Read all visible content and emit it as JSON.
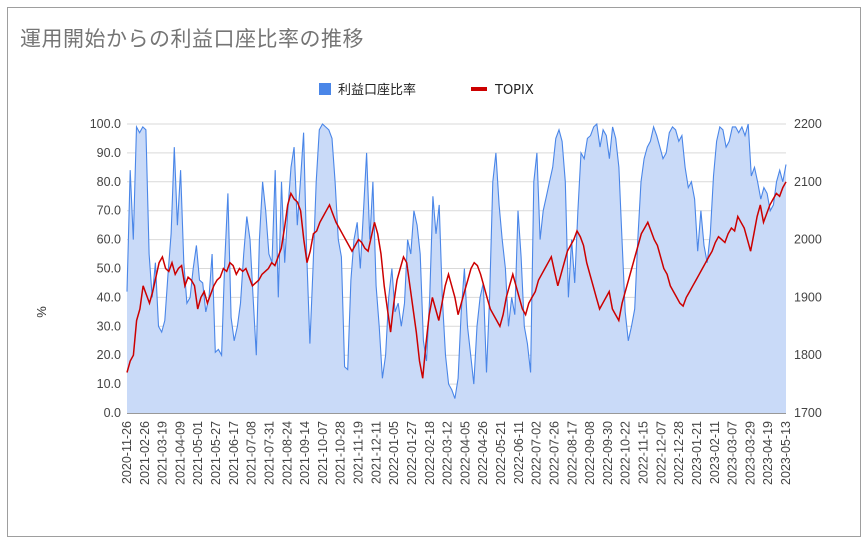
{
  "chart_data": {
    "type": "area-line-dual-axis",
    "title": "運用開始からの利益口座比率の推移",
    "ylabel_left": "%",
    "ylim_left": [
      0,
      100
    ],
    "left_ticks": [
      "100.0",
      "90.0",
      "80.0",
      "70.0",
      "60.0",
      "50.0",
      "40.0",
      "30.0",
      "20.0",
      "10.0",
      "0.0"
    ],
    "ylim_right": [
      1700,
      2200
    ],
    "right_ticks": [
      "2200",
      "2100",
      "2000",
      "1900",
      "1800",
      "1700"
    ],
    "legend": [
      "利益口座比率",
      "TOPIX"
    ],
    "legend_position": "top",
    "colors": {
      "ratio_line": "#4a86e8",
      "ratio_fill": "#c9daf8",
      "topix": "#cc0000",
      "legend_ratio": "#4a86e8",
      "legend_topix": "#cc0000"
    },
    "x_labels": [
      "2020-11-26",
      "2021-02-26",
      "2021-03-19",
      "2021-04-09",
      "2021-05-01",
      "2021-05-27",
      "2021-06-17",
      "2021-07-08",
      "2021-07-31",
      "2021-08-24",
      "2021-09-14",
      "2021-10-07",
      "2021-10-28",
      "2021-11-19",
      "2021-12-11",
      "2022-01-05",
      "2022-01-27",
      "2022-02-18",
      "2022-03-12",
      "2022-04-05",
      "2022-04-26",
      "2022-05-21",
      "2022-06-11",
      "2022-07-02",
      "2022-07-26",
      "2022-08-17",
      "2022-09-08",
      "2022-09-30",
      "2022-10-22",
      "2022-11-15",
      "2022-12-07",
      "2022-12-28",
      "2023-01-21",
      "2023-02-11",
      "2023-03-07",
      "2023-03-29",
      "2023-04-19",
      "2023-05-13"
    ],
    "series": [
      {
        "name": "利益口座比率",
        "axis": "left",
        "values": [
          42,
          84,
          60,
          99,
          97,
          99,
          98,
          55,
          40,
          52,
          30,
          28,
          32,
          48,
          62,
          92,
          65,
          84,
          52,
          38,
          40,
          50,
          58,
          46,
          45,
          35,
          40,
          55,
          21,
          22,
          20,
          52,
          76,
          33,
          25,
          30,
          38,
          55,
          68,
          60,
          40,
          20,
          60,
          80,
          70,
          55,
          52,
          84,
          40,
          80,
          52,
          70,
          85,
          92,
          65,
          80,
          97,
          55,
          24,
          50,
          80,
          98,
          100,
          99,
          98,
          95,
          80,
          60,
          54,
          16,
          15,
          46,
          60,
          66,
          50,
          70,
          90,
          60,
          80,
          44,
          30,
          12,
          20,
          40,
          50,
          35,
          38,
          30,
          38,
          60,
          55,
          70,
          65,
          55,
          25,
          18,
          40,
          75,
          62,
          72,
          40,
          20,
          10,
          8,
          5,
          12,
          35,
          50,
          30,
          20,
          10,
          30,
          40,
          45,
          14,
          40,
          80,
          90,
          72,
          60,
          50,
          30,
          40,
          34,
          70,
          54,
          30,
          24,
          14,
          80,
          90,
          60,
          70,
          75,
          80,
          85,
          95,
          98,
          94,
          80,
          40,
          60,
          45,
          70,
          90,
          88,
          95,
          96,
          99,
          100,
          92,
          98,
          96,
          88,
          99,
          95,
          85,
          60,
          35,
          25,
          30,
          36,
          60,
          80,
          88,
          92,
          94,
          99,
          96,
          92,
          88,
          90,
          97,
          99,
          98,
          94,
          96,
          85,
          78,
          80,
          74,
          56,
          70,
          58,
          52,
          62,
          82,
          94,
          99,
          98,
          92,
          94,
          99,
          99,
          97,
          99,
          96,
          100,
          82,
          85,
          80,
          74,
          78,
          76,
          70,
          72,
          80,
          84,
          80,
          86
        ]
      },
      {
        "name": "TOPIX",
        "axis": "right",
        "values": [
          1770,
          1790,
          1800,
          1860,
          1880,
          1920,
          1905,
          1890,
          1910,
          1935,
          1960,
          1970,
          1950,
          1945,
          1960,
          1940,
          1950,
          1955,
          1920,
          1935,
          1930,
          1920,
          1880,
          1900,
          1910,
          1890,
          1905,
          1920,
          1930,
          1935,
          1950,
          1945,
          1960,
          1955,
          1940,
          1950,
          1945,
          1950,
          1935,
          1920,
          1925,
          1930,
          1940,
          1945,
          1950,
          1960,
          1955,
          1970,
          1985,
          2020,
          2060,
          2080,
          2070,
          2065,
          2050,
          2000,
          1960,
          1980,
          2010,
          2015,
          2030,
          2040,
          2050,
          2060,
          2045,
          2030,
          2020,
          2010,
          2000,
          1990,
          1980,
          1990,
          2000,
          1995,
          1985,
          1980,
          2005,
          2030,
          2010,
          1975,
          1920,
          1880,
          1840,
          1890,
          1930,
          1950,
          1970,
          1960,
          1920,
          1880,
          1840,
          1790,
          1760,
          1820,
          1870,
          1900,
          1880,
          1860,
          1890,
          1920,
          1940,
          1920,
          1900,
          1870,
          1890,
          1910,
          1930,
          1950,
          1960,
          1955,
          1940,
          1920,
          1900,
          1880,
          1870,
          1860,
          1850,
          1870,
          1900,
          1920,
          1940,
          1920,
          1900,
          1880,
          1870,
          1890,
          1900,
          1910,
          1930,
          1940,
          1950,
          1960,
          1970,
          1945,
          1920,
          1940,
          1960,
          1980,
          1990,
          2000,
          2015,
          2005,
          1990,
          1960,
          1940,
          1920,
          1900,
          1880,
          1890,
          1900,
          1910,
          1880,
          1870,
          1860,
          1890,
          1910,
          1930,
          1950,
          1970,
          1990,
          2010,
          2020,
          2030,
          2015,
          2000,
          1990,
          1970,
          1950,
          1940,
          1920,
          1910,
          1900,
          1890,
          1885,
          1900,
          1910,
          1920,
          1930,
          1940,
          1950,
          1960,
          1970,
          1980,
          1995,
          2005,
          2000,
          1995,
          2010,
          2020,
          2015,
          2040,
          2030,
          2020,
          2000,
          1980,
          2010,
          2040,
          2060,
          2030,
          2045,
          2060,
          2070,
          2080,
          2075,
          2090,
          2100
        ]
      }
    ]
  }
}
